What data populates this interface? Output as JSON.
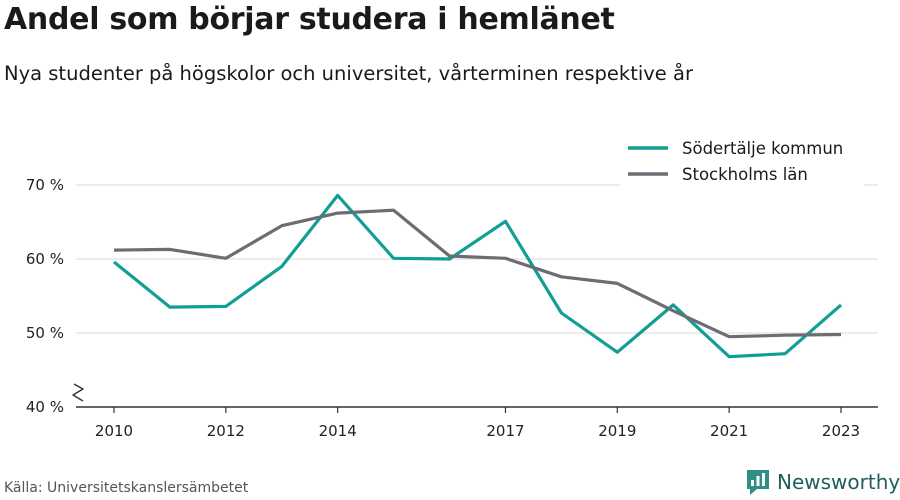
{
  "header": {
    "title": "Andel som börjar studera i hemlänet",
    "subtitle": "Nya studenter på högskolor och universitet, vårterminen respektive år"
  },
  "footer": {
    "source": "Källa: Universitetskanslersämbetet",
    "brand": "Newsworthy"
  },
  "colors": {
    "accent": "#119e94",
    "secondary": "#6d6b73",
    "brand": "#1e5f5a",
    "grid": "#d9d9d9"
  },
  "icons": [
    "break-mark-icon",
    "newsworthy-logo-icon"
  ],
  "chart_data": {
    "type": "line",
    "x": [
      2010,
      2011,
      2012,
      2013,
      2014,
      2015,
      2016,
      2017,
      2018,
      2019,
      2020,
      2021,
      2022,
      2023
    ],
    "series": [
      {
        "name": "Södertälje kommun",
        "color": "#119e94",
        "values": [
          59.6,
          53.5,
          53.6,
          59.0,
          68.6,
          60.1,
          60.0,
          65.1,
          52.7,
          47.4,
          53.8,
          46.8,
          47.2,
          53.8
        ]
      },
      {
        "name": "Stockholms län",
        "color": "#6d6b73",
        "values": [
          61.2,
          61.3,
          60.1,
          64.5,
          66.2,
          66.6,
          60.4,
          60.1,
          57.6,
          56.7,
          53.0,
          49.5,
          49.7,
          49.8
        ]
      }
    ],
    "x_ticks": [
      2010,
      2012,
      2014,
      2017,
      2019,
      2021,
      2023
    ],
    "y_ticks": [
      40,
      50,
      60,
      70
    ],
    "y_tick_labels": [
      "40 %",
      "50 %",
      "60 %",
      "70 %"
    ],
    "ylim": [
      40,
      70
    ],
    "xlim": [
      2010,
      2023
    ],
    "y_axis_break": true,
    "grid": "horizontal",
    "legend_position": "top-right"
  }
}
